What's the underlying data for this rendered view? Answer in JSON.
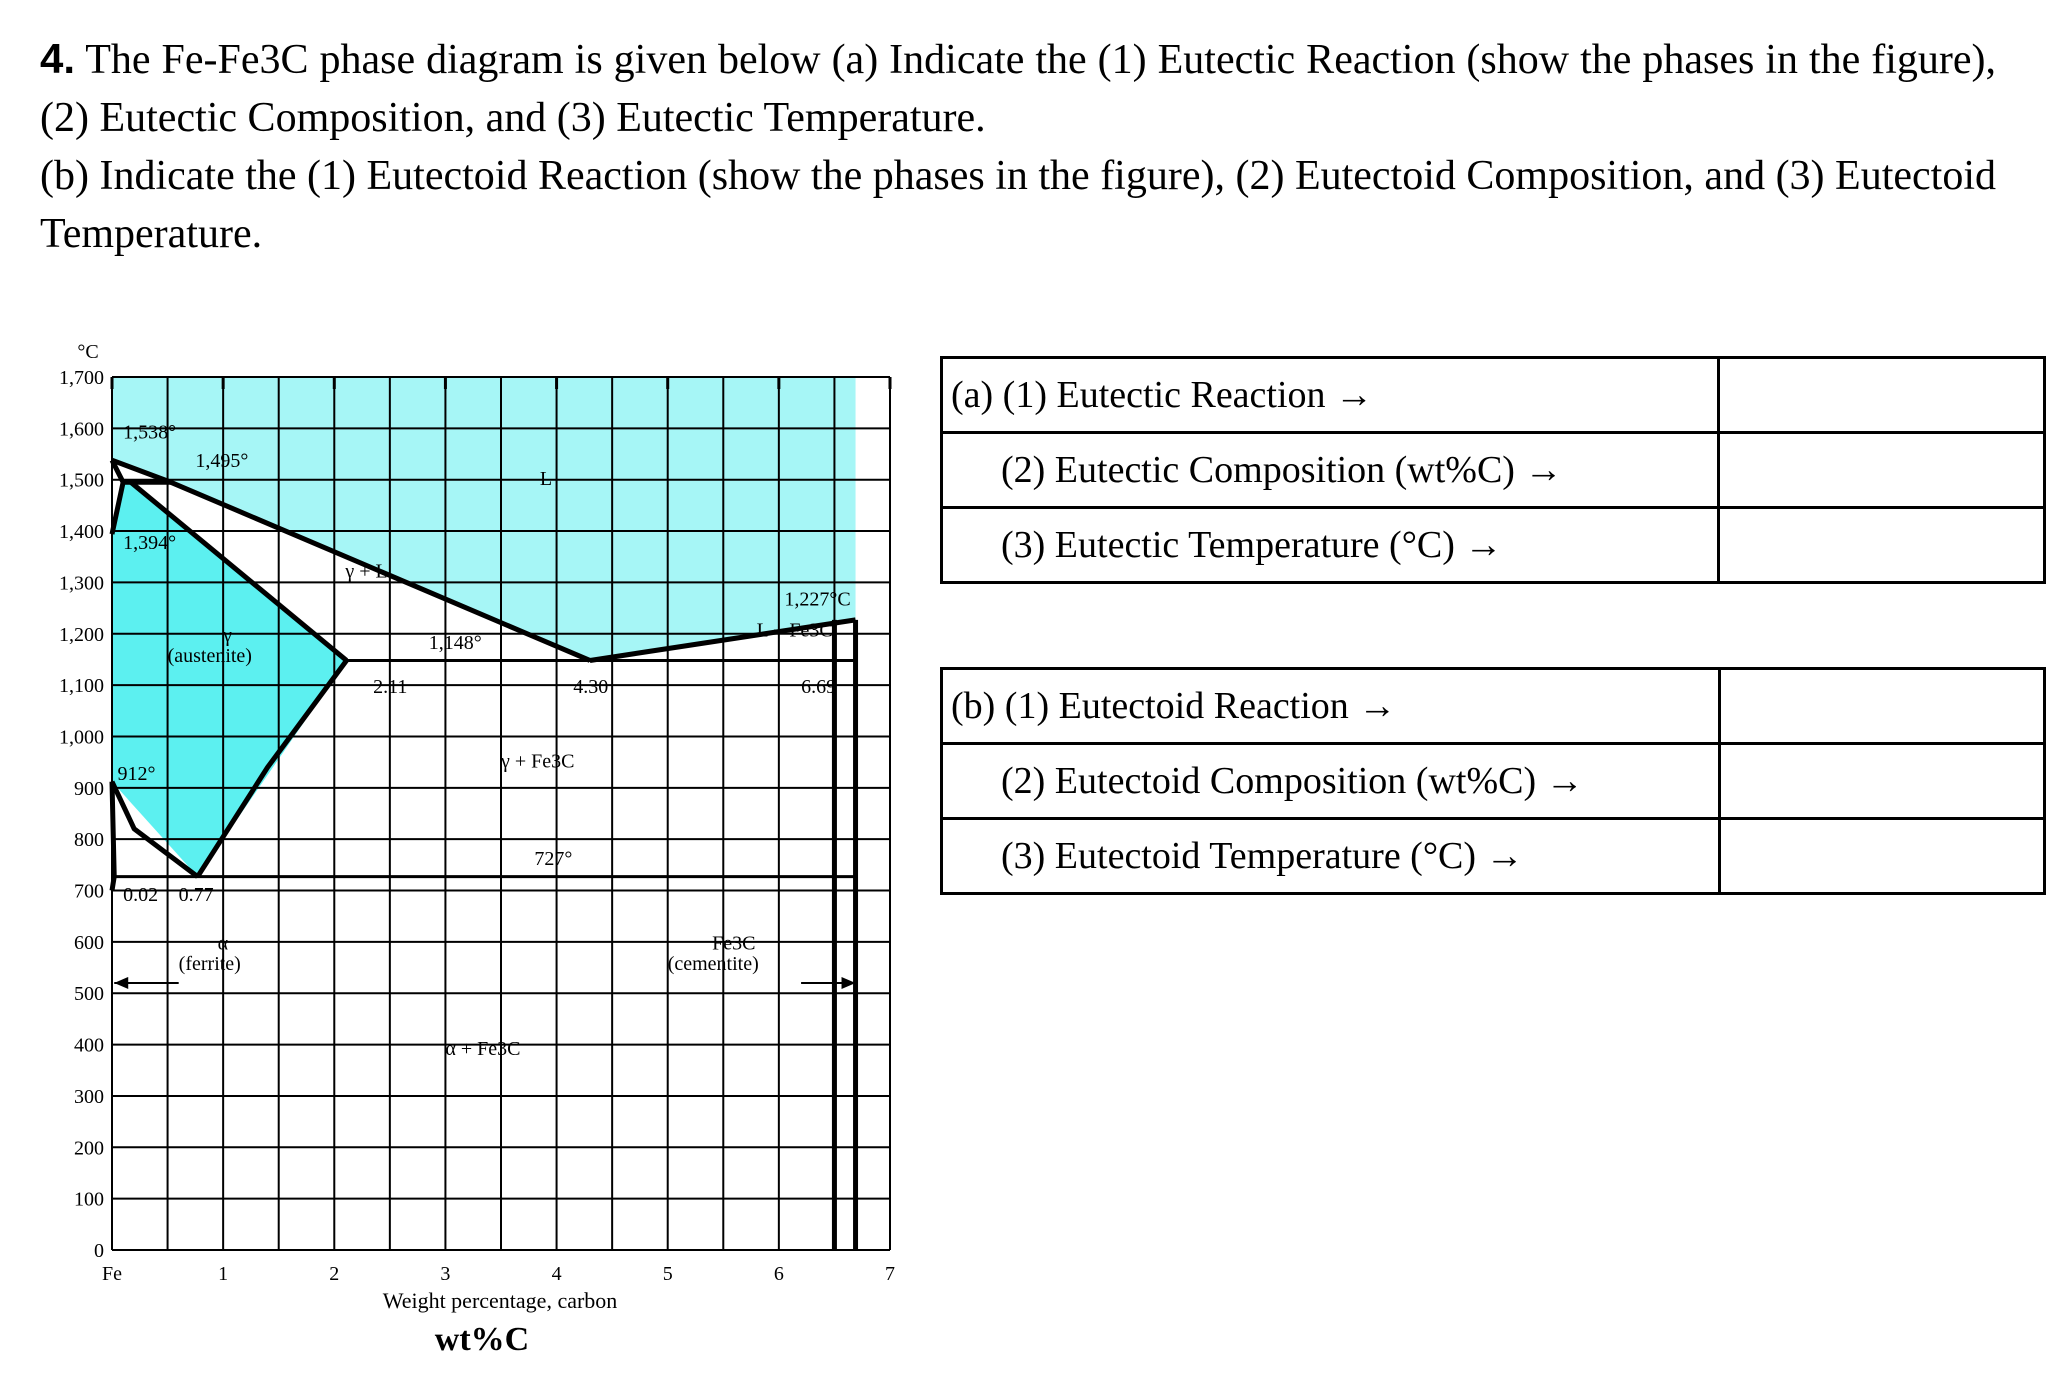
{
  "question": {
    "number": "4.",
    "line_a": "The Fe-Fe3C phase diagram is given below (a) Indicate the (1) Eutectic Reaction (show the phases in the figure), (2) Eutectic Composition, and (3) Eutectic Temperature.",
    "line_b": "(b) Indicate the (1) Eutectoid Reaction (show the phases in the figure), (2) Eutectoid Composition, and (3) Eutectoid Temperature."
  },
  "chart_data": {
    "type": "phase-diagram",
    "xlabel": "Weight percentage, carbon",
    "xlabel2": "wt%C",
    "yunit": "°C",
    "xlim": [
      0,
      7
    ],
    "ylim": [
      0,
      1700
    ],
    "x_ticks": [
      {
        "x": 0,
        "label": "Fe"
      },
      {
        "x": 1,
        "label": "1"
      },
      {
        "x": 2,
        "label": "2"
      },
      {
        "x": 3,
        "label": "3"
      },
      {
        "x": 4,
        "label": "4"
      },
      {
        "x": 5,
        "label": "5"
      },
      {
        "x": 6,
        "label": "6"
      },
      {
        "x": 7,
        "label": "7"
      }
    ],
    "y_ticks": [
      {
        "y": 0,
        "label": "0"
      },
      {
        "y": 100,
        "label": "100"
      },
      {
        "y": 200,
        "label": "200"
      },
      {
        "y": 300,
        "label": "300"
      },
      {
        "y": 400,
        "label": "400"
      },
      {
        "y": 500,
        "label": "500"
      },
      {
        "y": 600,
        "label": "600"
      },
      {
        "y": 700,
        "label": "700"
      },
      {
        "y": 800,
        "label": "800"
      },
      {
        "y": 900,
        "label": "900"
      },
      {
        "y": 1000,
        "label": "1,000"
      },
      {
        "y": 1100,
        "label": "1,100"
      },
      {
        "y": 1200,
        "label": "1,200"
      },
      {
        "y": 1300,
        "label": "1,300"
      },
      {
        "y": 1400,
        "label": "1,400"
      },
      {
        "y": 1500,
        "label": "1,500"
      },
      {
        "y": 1600,
        "label": "1,600"
      },
      {
        "y": 1700,
        "label": "1,700"
      }
    ],
    "regions": [
      {
        "name": "liquid",
        "fill": "#a6f6f6",
        "points": [
          [
            0,
            1700
          ],
          [
            6.69,
            1700
          ],
          [
            6.69,
            1227
          ],
          [
            4.3,
            1148
          ],
          [
            0.53,
            1495
          ],
          [
            0,
            1538
          ]
        ]
      },
      {
        "name": "austenite",
        "fill": "#5cf0f0",
        "points": [
          [
            0.08,
            1495
          ],
          [
            0.17,
            1495
          ],
          [
            2.11,
            1148
          ],
          [
            0.77,
            727
          ],
          [
            0,
            912
          ],
          [
            0,
            1394
          ]
        ]
      }
    ],
    "lines": [
      {
        "name": "liquidus-left",
        "points": [
          [
            0,
            1538
          ],
          [
            0.53,
            1495
          ],
          [
            4.3,
            1148
          ]
        ]
      },
      {
        "name": "liquidus-right",
        "points": [
          [
            4.3,
            1148
          ],
          [
            6.69,
            1227
          ]
        ]
      },
      {
        "name": "solidus",
        "points": [
          [
            0.17,
            1495
          ],
          [
            2.11,
            1148
          ]
        ]
      },
      {
        "name": "acm-line",
        "points": [
          [
            2.11,
            1148
          ],
          [
            1.4,
            940
          ],
          [
            0.77,
            727
          ]
        ]
      },
      {
        "name": "a3-line",
        "points": [
          [
            0,
            912
          ],
          [
            0.2,
            820
          ],
          [
            0.77,
            727
          ]
        ]
      },
      {
        "name": "delta-boundary",
        "points": [
          [
            0,
            1538
          ],
          [
            0.1,
            1495
          ],
          [
            0,
            1394
          ]
        ]
      },
      {
        "name": "peritectic-line",
        "points": [
          [
            0.08,
            1495
          ],
          [
            0.53,
            1495
          ]
        ]
      },
      {
        "name": "alpha-solvus",
        "points": [
          [
            0,
            912
          ],
          [
            0.02,
            727
          ],
          [
            0,
            700
          ]
        ]
      },
      {
        "name": "cementite-line",
        "points": [
          [
            6.69,
            1227
          ],
          [
            6.69,
            0
          ]
        ]
      },
      {
        "name": "cementite-line-2",
        "points": [
          [
            6.5,
            1227
          ],
          [
            6.5,
            0
          ]
        ]
      }
    ],
    "isotherms": [
      {
        "name": "eutectic-isotherm",
        "y": 1148,
        "x0": 2.11,
        "x1": 6.69
      },
      {
        "name": "eutectoid-isotherm",
        "y": 727,
        "x0": 0.02,
        "x1": 6.69
      }
    ],
    "labels": [
      {
        "text": "1,538°",
        "x": 0.1,
        "y": 1580
      },
      {
        "text": "1,495°",
        "x": 0.75,
        "y": 1525
      },
      {
        "text": "L",
        "x": 3.85,
        "y": 1490
      },
      {
        "text": "1,394°",
        "x": 0.1,
        "y": 1365
      },
      {
        "text": "γ + L",
        "x": 2.1,
        "y": 1310
      },
      {
        "text": "1,227°C",
        "x": 6.05,
        "y": 1255
      },
      {
        "text": "L + Fe3C",
        "x": 5.8,
        "y": 1195
      },
      {
        "text": "γ",
        "x": 1.0,
        "y": 1185
      },
      {
        "text": "(austenite)",
        "x": 0.5,
        "y": 1145
      },
      {
        "text": "1,148°",
        "x": 2.85,
        "y": 1170
      },
      {
        "text": "2.11",
        "x": 2.35,
        "y": 1085
      },
      {
        "text": "4.30",
        "x": 4.15,
        "y": 1085
      },
      {
        "text": "6.69",
        "x": 6.2,
        "y": 1085
      },
      {
        "text": "γ + Fe3C",
        "x": 3.5,
        "y": 940
      },
      {
        "text": "912°",
        "x": 0.05,
        "y": 915
      },
      {
        "text": "727°",
        "x": 3.8,
        "y": 750
      },
      {
        "text": "0.02",
        "x": 0.1,
        "y": 680
      },
      {
        "text": "0.77",
        "x": 0.6,
        "y": 680
      },
      {
        "text": "α",
        "x": 0.95,
        "y": 585
      },
      {
        "text": "(ferrite)",
        "x": 0.6,
        "y": 545
      },
      {
        "text": "Fe3C",
        "x": 5.4,
        "y": 585
      },
      {
        "text": "(cementite)",
        "x": 5.0,
        "y": 545
      },
      {
        "text": "α + Fe3C",
        "x": 3.0,
        "y": 380
      }
    ],
    "arrows": [
      {
        "name": "ferrite-arrow",
        "from": [
          0.6,
          520
        ],
        "to": [
          0.02,
          520
        ]
      },
      {
        "name": "cementite-arrow",
        "from": [
          6.2,
          520
        ],
        "to": [
          6.69,
          520
        ]
      }
    ]
  },
  "table_a": {
    "rows": [
      {
        "label": "(a) (1) Eutectic Reaction →",
        "answer": ""
      },
      {
        "label": "(2) Eutectic Composition (wt%C) →",
        "answer": ""
      },
      {
        "label": "(3) Eutectic Temperature (°C) →",
        "answer": ""
      }
    ]
  },
  "table_b": {
    "rows": [
      {
        "label": "(b) (1) Eutectoid Reaction →",
        "answer": ""
      },
      {
        "label": "(2) Eutectoid Composition (wt%C) →",
        "answer": ""
      },
      {
        "label": "(3) Eutectoid Temperature (°C) →",
        "answer": ""
      }
    ]
  }
}
